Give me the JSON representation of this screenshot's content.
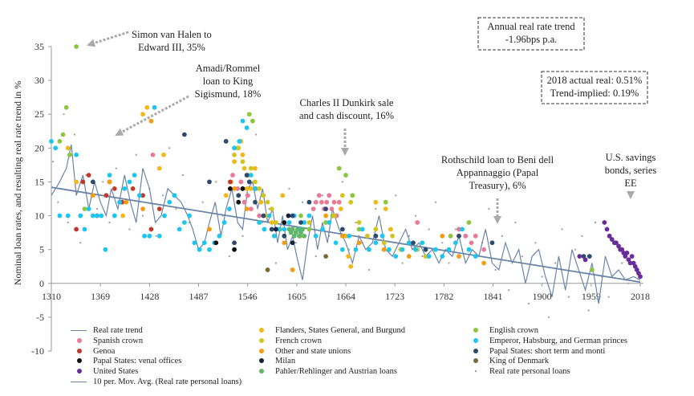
{
  "chart_data": {
    "type": "scatter",
    "xlabel": "",
    "ylabel": "Nominal loan rates, and resulting real rate trend in %",
    "xlim": [
      1310,
      2018
    ],
    "ylim": [
      -10,
      35
    ],
    "xticks": [
      "1310",
      "1369",
      "1428",
      "1487",
      "1546",
      "1605",
      "1664",
      "1723",
      "1782",
      "1841",
      "1900",
      "1959",
      "2018"
    ],
    "yticks": [
      "35",
      "30",
      "25",
      "20",
      "15",
      "10",
      "5",
      "0",
      "-5",
      "-10"
    ],
    "grid": false,
    "legend_position": "bottom",
    "annotations": [
      {
        "lines": [
          "Simon van Halen to",
          "Edward III, 35%"
        ],
        "target": [
          1335,
          35
        ]
      },
      {
        "lines": [
          "Amadi/Rommel",
          "loan to King",
          "Sigismund, 18%"
        ],
        "target": [
          1385,
          22
        ]
      },
      {
        "lines": [
          "Charles II Dunkirk sale",
          "and cash discount, 16%"
        ],
        "target": [
          1662,
          19
        ]
      },
      {
        "lines": [
          "Rothschild loan to Beni dell",
          "Appannaggio (Papal",
          "Treasury), 6%"
        ],
        "target": [
          1832,
          8
        ]
      },
      {
        "lines": [
          "U.S. savings",
          "bonds, series",
          "EE"
        ],
        "target": [
          1985,
          13
        ]
      }
    ],
    "boxes": [
      {
        "lines": [
          "Annual real rate trend",
          "-1.96bps p.a."
        ]
      },
      {
        "lines": [
          "2018 actual real: 0.51%",
          "Trend-implied: 0.19%"
        ]
      }
    ],
    "trend": {
      "name": "Real rate trend",
      "x": [
        1310,
        2018
      ],
      "y": [
        14.2,
        0.19
      ],
      "color": "#6b84a8"
    },
    "moving_avg": {
      "name": "10 per. Mov. Avg. (Real rate personal loans)",
      "color": "#6b84a8",
      "x": [
        1310,
        1320,
        1328,
        1334,
        1340,
        1348,
        1355,
        1362,
        1369,
        1376,
        1382,
        1390,
        1398,
        1405,
        1412,
        1420,
        1428,
        1435,
        1442,
        1450,
        1458,
        1466,
        1474,
        1480,
        1487,
        1494,
        1500,
        1507,
        1514,
        1520,
        1527,
        1534,
        1540,
        1546,
        1552,
        1558,
        1564,
        1570,
        1576,
        1582,
        1588,
        1594,
        1600,
        1605,
        1612,
        1618,
        1624,
        1630,
        1636,
        1642,
        1648,
        1656,
        1664,
        1672,
        1680,
        1688,
        1696,
        1704,
        1712,
        1720,
        1728,
        1736,
        1744,
        1752,
        1760,
        1768,
        1776,
        1784,
        1792,
        1800,
        1808,
        1816,
        1824,
        1832,
        1840,
        1848,
        1856,
        1864,
        1872,
        1880,
        1888,
        1896,
        1904,
        1912,
        1920,
        1928,
        1936,
        1944,
        1952,
        1960,
        1968,
        1976,
        1984,
        1992,
        2000,
        2010,
        2018
      ],
      "y": [
        13,
        15,
        17,
        20.5,
        13,
        16,
        11,
        15,
        12,
        10,
        14,
        11,
        16,
        12,
        9,
        17,
        14,
        9,
        10,
        14,
        13,
        12,
        10,
        8,
        5,
        6,
        9,
        12,
        7,
        11,
        14,
        9,
        8,
        14,
        15,
        11,
        14,
        9,
        11,
        6,
        10,
        5,
        7,
        4,
        0.5,
        6,
        10,
        5,
        9,
        6,
        11,
        8,
        6,
        3,
        7,
        5,
        6,
        10,
        5,
        4,
        6,
        8,
        5,
        6,
        4,
        5,
        3,
        5,
        4,
        7,
        3,
        5,
        4,
        8,
        3,
        2,
        6,
        3,
        5,
        0,
        4,
        5,
        1,
        -2,
        4,
        -1,
        5,
        2,
        -1,
        3,
        -3,
        4,
        1,
        2,
        0.5,
        1,
        0.5
      ]
    },
    "series": [
      {
        "name": "Flanders, States General, and Burgund",
        "color": "#f2b81a",
        "x": [
          1330,
          1340,
          1393,
          1396,
          1420,
          1425,
          1440,
          1445,
          1520,
          1526,
          1530,
          1534,
          1538,
          1540,
          1542,
          1545,
          1547,
          1550,
          1555,
          1562,
          1568,
          1575,
          1588,
          1600,
          1652,
          1658,
          1664,
          1667,
          1670,
          1700,
          1712,
          1718
        ],
        "y": [
          20,
          15,
          12,
          10,
          25,
          26,
          17,
          19,
          13,
          15,
          18,
          20,
          21,
          19,
          17,
          14,
          16,
          14,
          17,
          12,
          10,
          9,
          13,
          8,
          10,
          11,
          7,
          4,
          2.5,
          12,
          11,
          8
        ]
      },
      {
        "name": "English crown",
        "color": "#8cc63f",
        "x": [
          1320,
          1324,
          1328,
          1332,
          1340,
          1350,
          1548,
          1552,
          1556,
          1610,
          1620,
          1640,
          1648,
          1656,
          1664,
          1672,
          1680,
          1700,
          1712,
          1760,
          1790,
          1800,
          1812,
          1960
        ],
        "y": [
          21,
          22,
          26,
          19,
          35,
          11,
          25,
          24,
          14,
          10,
          8,
          9,
          10,
          17,
          16,
          13,
          8,
          7,
          12,
          5,
          7,
          8,
          9,
          2
        ]
      },
      {
        "name": "Spanish crown",
        "color": "#e97a97",
        "x": [
          1376,
          1432,
          1528,
          1534,
          1538,
          1542,
          1546,
          1550,
          1555,
          1560,
          1625,
          1628,
          1632,
          1635,
          1638,
          1641,
          1644,
          1647,
          1650,
          1653,
          1656,
          1750,
          1800,
          1808,
          1815,
          1820,
          1830
        ],
        "y": [
          13,
          19,
          16,
          14,
          15,
          12,
          13,
          11,
          14,
          10,
          11,
          12,
          13,
          12,
          11,
          12,
          13,
          11,
          12,
          10,
          12,
          9,
          8,
          7,
          6,
          7,
          5
        ]
      },
      {
        "name": "French crown",
        "color": "#d4c41e",
        "x": [
          1530,
          1535,
          1540,
          1545,
          1550,
          1555,
          1560,
          1565,
          1570,
          1575,
          1580,
          1585,
          1590,
          1600,
          1610,
          1620,
          1650,
          1660,
          1670,
          1680,
          1690,
          1700,
          1710,
          1720,
          1730,
          1740,
          1750,
          1760
        ],
        "y": [
          19,
          20,
          18,
          16,
          17,
          15,
          14,
          13,
          12,
          11,
          9,
          8,
          7,
          8,
          7,
          9,
          10,
          13,
          12,
          9,
          7,
          8,
          6,
          7,
          5,
          6,
          5,
          4
        ]
      },
      {
        "name": "Genoa",
        "color": "#c0392b",
        "x": [
          1340,
          1348,
          1355,
          1365,
          1376,
          1380,
          1386,
          1395,
          1408,
          1420,
          1430,
          1440,
          1525
        ],
        "y": [
          8,
          15,
          16,
          10,
          13,
          15,
          14,
          12,
          14,
          13,
          8,
          11,
          15
        ]
      },
      {
        "name": "Other and state unions",
        "color": "#f39c12",
        "x": [
          1360,
          1380,
          1400,
          1420,
          1430,
          1500,
          1530,
          1545,
          1560,
          1575,
          1590,
          1600,
          1640,
          1660,
          1680,
          1710,
          1740,
          1780,
          1800,
          1830
        ],
        "y": [
          13,
          15,
          12,
          11,
          24,
          8,
          14,
          11,
          9,
          8,
          6,
          2,
          10,
          7,
          6,
          5,
          4,
          7,
          4,
          3
        ]
      },
      {
        "name": "Emperor, Habsburg, and German princes",
        "color": "#1cc6f0",
        "x": [
          1310,
          1315,
          1320,
          1330,
          1340,
          1345,
          1350,
          1355,
          1360,
          1365,
          1370,
          1375,
          1380,
          1386,
          1392,
          1398,
          1404,
          1410,
          1416,
          1422,
          1428,
          1434,
          1440,
          1446,
          1452,
          1458,
          1464,
          1470,
          1476,
          1482,
          1488,
          1494,
          1500,
          1506,
          1512,
          1518,
          1524,
          1530,
          1536,
          1540,
          1545,
          1550,
          1555,
          1560,
          1566,
          1572,
          1578,
          1584,
          1590,
          1596,
          1602,
          1608,
          1614,
          1620,
          1628,
          1636,
          1644,
          1652,
          1660,
          1668,
          1676,
          1684,
          1692,
          1700,
          1708,
          1716,
          1724,
          1732,
          1740,
          1748,
          1756,
          1764,
          1772,
          1780,
          1788,
          1796,
          1804,
          1812,
          1820
        ],
        "y": [
          21,
          20,
          10,
          10,
          19,
          10,
          8,
          11,
          10,
          10,
          10,
          5,
          16,
          10,
          12,
          14,
          15,
          16,
          13,
          7,
          7,
          26,
          7,
          10,
          12,
          13,
          8,
          9,
          10,
          6,
          5,
          6,
          5,
          6,
          7,
          9,
          11,
          20,
          21,
          24,
          23,
          16,
          14,
          9,
          8,
          10,
          7,
          8,
          8,
          9,
          10,
          8,
          9,
          10,
          7,
          8,
          9,
          6,
          5,
          7,
          5,
          8,
          5,
          6,
          7,
          5,
          4,
          5,
          6,
          5,
          6,
          4,
          5,
          4,
          5,
          6,
          8,
          5,
          4
        ]
      },
      {
        "name": "Papal States: short term and monti",
        "color": "#2c4a6e",
        "x": [
          1360,
          1470,
          1500,
          1520,
          1530,
          1535,
          1540,
          1545,
          1548,
          1555,
          1565,
          1575,
          1590,
          1600,
          1610,
          1620,
          1640,
          1660,
          1700,
          1745,
          1760,
          1800,
          1840,
          1950,
          1957
        ],
        "y": [
          15,
          22,
          15,
          21,
          6,
          13,
          14,
          16,
          15,
          12,
          10,
          8,
          7,
          10,
          9,
          12,
          11,
          8,
          7,
          6,
          5,
          7,
          6,
          4,
          4
        ]
      },
      {
        "name": "Papal States: venal offices",
        "color": "#111111",
        "x": [
          1508,
          1525,
          1530,
          1535,
          1540,
          1590
        ],
        "y": [
          6,
          14,
          5,
          12,
          14,
          9
        ]
      },
      {
        "name": "Milan",
        "color": "#17223a",
        "x": [
          1580,
          1595,
          1600
        ],
        "y": [
          8,
          10,
          6
        ]
      },
      {
        "name": "King of Denmark",
        "color": "#7a6a3a",
        "x": [
          1570,
          1640
        ],
        "y": [
          2,
          4
        ]
      },
      {
        "name": "United States",
        "color": "#6a2c9a",
        "x": [
          1945,
          1952,
          1975,
          1978,
          1981,
          1984,
          1987,
          1989,
          1992,
          1994,
          1996,
          1998,
          2000,
          2002,
          2004,
          2006,
          2008,
          2010,
          2012,
          2014,
          2016,
          2018
        ],
        "y": [
          4,
          3.5,
          9,
          8,
          7,
          6.5,
          6,
          6,
          5.5,
          5,
          5,
          4.5,
          4,
          4.5,
          3.5,
          3,
          4,
          3,
          2.5,
          2,
          1.5,
          1
        ]
      },
      {
        "name": "Pahler/Rehlinger and Austrian loans",
        "color": "#5fb86a",
        "x": [
          1596,
          1598,
          1600,
          1602,
          1604,
          1606,
          1608,
          1610,
          1612,
          1614
        ],
        "y": [
          8,
          7.5,
          8,
          7,
          7.5,
          8,
          7,
          7.5,
          8,
          7
        ]
      },
      {
        "name": "Real rate personal loans",
        "color": "#a0a0a0",
        "small": true,
        "x": [
          1312,
          1318,
          1325,
          1330,
          1338,
          1345,
          1352,
          1358,
          1365,
          1372,
          1380,
          1388,
          1396,
          1404,
          1412,
          1420,
          1428,
          1436,
          1444,
          1452,
          1460,
          1468,
          1476,
          1484,
          1492,
          1500,
          1508,
          1516,
          1524,
          1532,
          1540,
          1548,
          1556,
          1564,
          1572,
          1580,
          1588,
          1596,
          1604,
          1612,
          1620,
          1628,
          1636,
          1644,
          1652,
          1660,
          1668,
          1676,
          1684,
          1692,
          1700,
          1708,
          1716,
          1724,
          1732,
          1740,
          1748,
          1756,
          1764,
          1772,
          1780,
          1788,
          1796,
          1804,
          1812,
          1820,
          1828,
          1836,
          1844,
          1852,
          1860,
          1868,
          1876,
          1884,
          1892,
          1900,
          1908,
          1916,
          1924,
          1932,
          1940,
          1948,
          1956,
          1964,
          1972,
          1980,
          1988,
          1996,
          2004,
          2012
        ],
        "y": [
          18,
          12,
          25,
          9,
          22,
          6,
          16,
          13,
          11,
          15,
          9,
          17,
          12,
          8,
          19,
          10,
          14,
          7,
          13,
          20,
          11,
          16,
          9,
          6,
          12,
          8,
          15,
          10,
          4,
          18,
          7,
          13,
          22,
          9,
          11,
          3,
          8,
          14,
          6,
          12,
          9,
          4,
          13,
          7,
          10,
          15,
          5,
          9,
          6,
          2,
          11,
          5,
          8,
          13,
          3,
          7,
          10,
          4,
          8,
          12,
          6,
          3,
          8,
          5,
          9,
          4,
          6,
          11,
          2,
          7,
          -1,
          9,
          4,
          -3,
          6,
          1,
          -5,
          3,
          8,
          -2,
          5,
          7,
          -4,
          9,
          1,
          -2,
          6,
          3,
          0,
          2
        ]
      }
    ]
  }
}
